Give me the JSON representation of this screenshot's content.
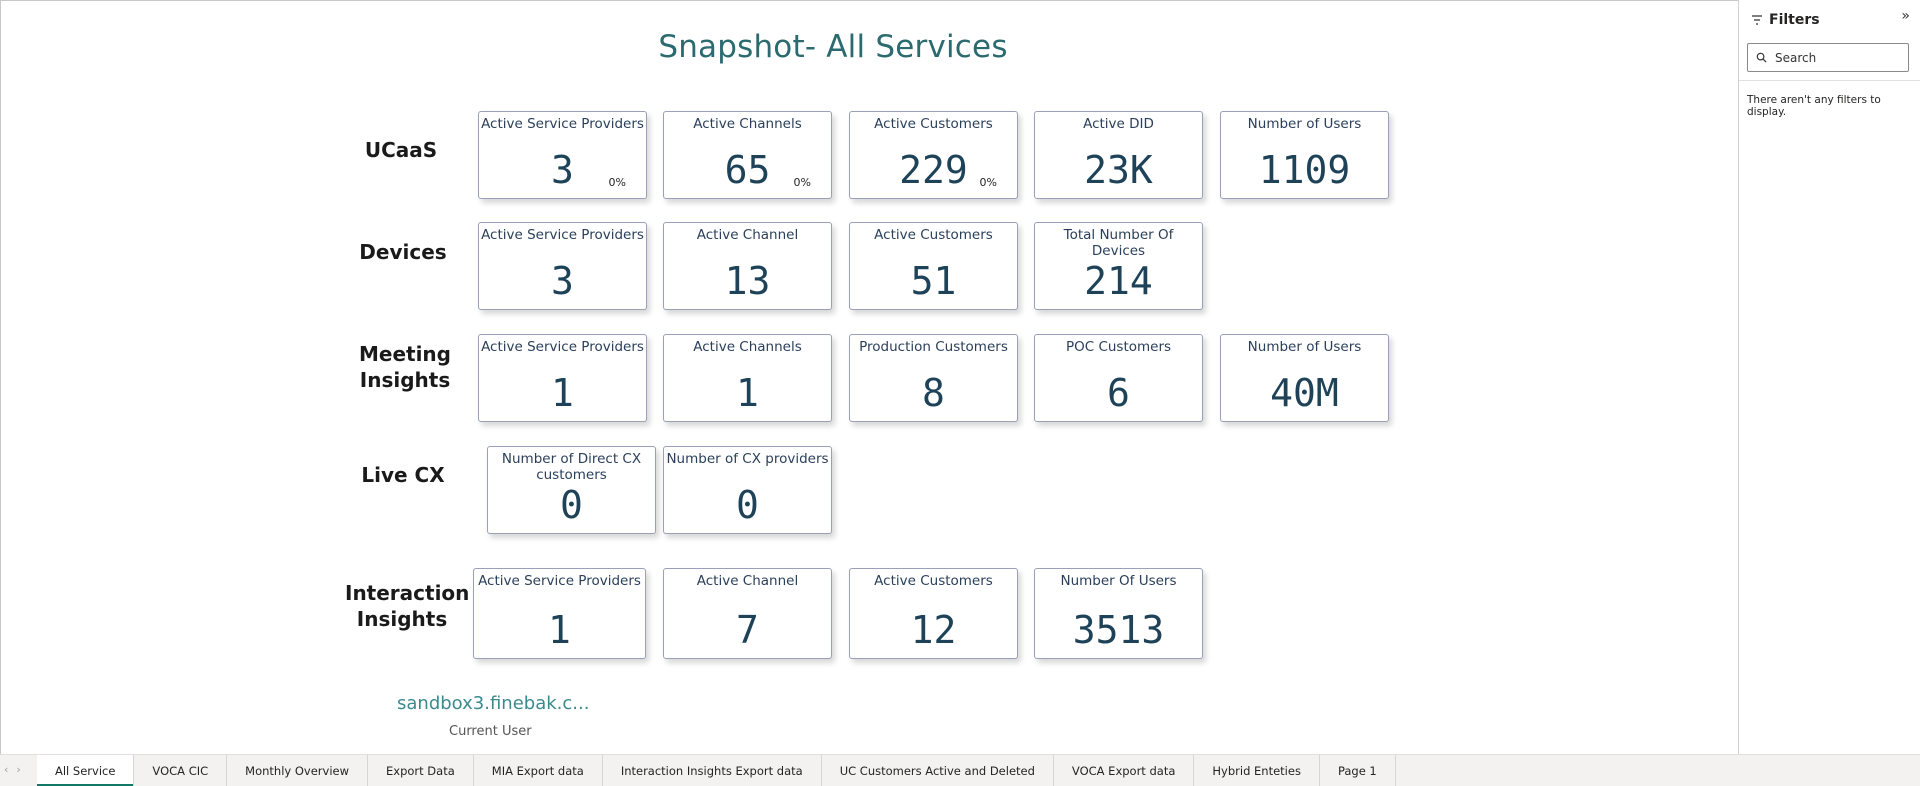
{
  "report": {
    "title": "Snapshot- All Services",
    "user_name": "sandbox3.finebak.c...",
    "user_label": "Current User"
  },
  "sections": {
    "ucaas": {
      "label": "UCaaS",
      "cards": [
        {
          "label": "Active Service Providers",
          "value": "3",
          "pct": "0%"
        },
        {
          "label": "Active Channels",
          "value": "65",
          "pct": "0%"
        },
        {
          "label": "Active Customers",
          "value": "229",
          "pct": "0%"
        },
        {
          "label": "Active DID",
          "value": "23K"
        },
        {
          "label": "Number of Users",
          "value": "1109"
        }
      ]
    },
    "devices": {
      "label": "Devices",
      "cards": [
        {
          "label": "Active Service Providers",
          "value": "3"
        },
        {
          "label": "Active Channel",
          "value": "13"
        },
        {
          "label": "Active Customers",
          "value": "51"
        },
        {
          "label": "Total Number Of Devices",
          "value": "214"
        }
      ]
    },
    "meeting": {
      "label_line1": "Meeting",
      "label_line2": "Insights",
      "cards": [
        {
          "label": "Active Service Providers",
          "value": "1"
        },
        {
          "label": "Active Channels",
          "value": "1"
        },
        {
          "label": "Production Customers",
          "value": "8"
        },
        {
          "label": "POC Customers",
          "value": "6"
        },
        {
          "label": "Number of Users",
          "value": "40M"
        }
      ]
    },
    "livecx": {
      "label": "Live CX",
      "cards": [
        {
          "label": "Number of Direct CX customers",
          "value": "0"
        },
        {
          "label": "Number of CX providers",
          "value": "0"
        }
      ]
    },
    "interaction": {
      "label_line1": "Interaction",
      "label_line2": "Insights",
      "cards": [
        {
          "label": "Active Service Providers",
          "value": "1"
        },
        {
          "label": "Active Channel",
          "value": "7"
        },
        {
          "label": "Active Customers",
          "value": "12"
        },
        {
          "label": "Number Of Users",
          "value": "3513"
        }
      ]
    }
  },
  "filters": {
    "title": "Filters",
    "expand_glyph": "»",
    "search_placeholder": "Search",
    "empty_message": "There aren't any filters to display."
  },
  "tabbar": {
    "prev_glyph": "‹",
    "next_glyph": "›",
    "tabs": [
      {
        "label": "All Service",
        "active": true
      },
      {
        "label": "VOCA CIC"
      },
      {
        "label": "Monthly Overview"
      },
      {
        "label": "Export Data"
      },
      {
        "label": "MIA Export data"
      },
      {
        "label": "Interaction Insights Export data"
      },
      {
        "label": "UC Customers Active and Deleted"
      },
      {
        "label": "VOCA Export data"
      },
      {
        "label": "Hybrid Enteties"
      },
      {
        "label": "Page 1"
      }
    ]
  },
  "icons": {
    "filter": "filter-icon",
    "search": "search-icon",
    "expand": "expand-pane-icon"
  },
  "colors": {
    "title": "#2b6b70",
    "card_value": "#1e4358",
    "tab_active_underline": "#117865"
  }
}
